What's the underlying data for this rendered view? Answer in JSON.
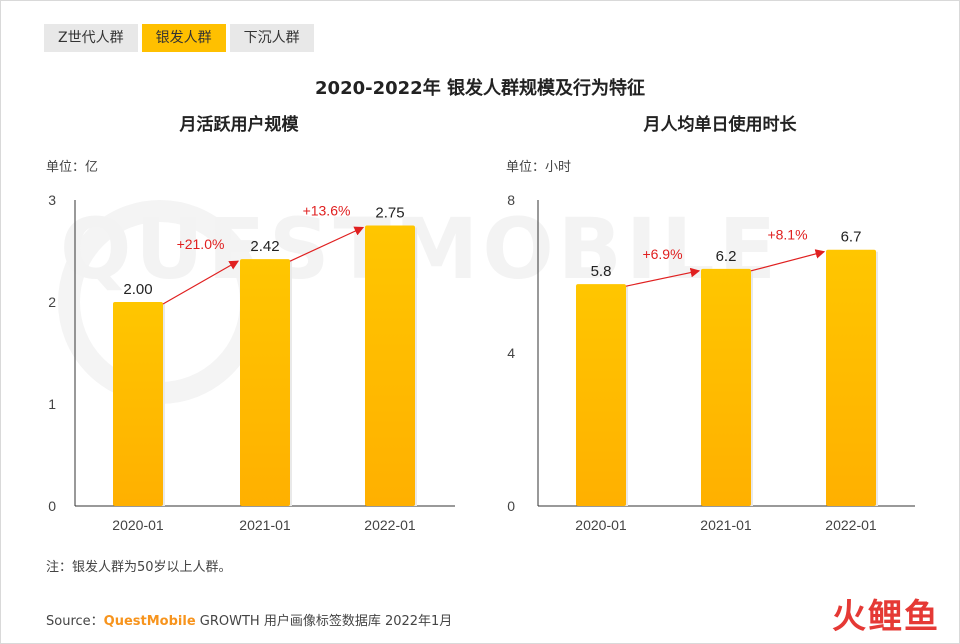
{
  "tabs": [
    {
      "label": "Z世代人群",
      "active": false
    },
    {
      "label": "银发人群",
      "active": true
    },
    {
      "label": "下沉人群",
      "active": false
    }
  ],
  "main_title": "2020-2022年 银发人群规模及行为特征",
  "watermark": "QUESTMOBILE",
  "colors": {
    "bar_top": "#ffc000",
    "bar_bottom": "#ffb400",
    "growth": "#e02020",
    "tab_active": "#ffc000"
  },
  "chart_data": [
    {
      "type": "bar",
      "title": "月活跃用户规模",
      "unit": "单位：亿",
      "categories": [
        "2020-01",
        "2021-01",
        "2022-01"
      ],
      "values": [
        2.0,
        2.42,
        2.75
      ],
      "value_labels": [
        "2.00",
        "2.42",
        "2.75"
      ],
      "growth_labels": [
        "+21.0%",
        "+13.6%"
      ],
      "ylim": [
        0,
        3
      ],
      "yticks": [
        0,
        1,
        2,
        3
      ],
      "grid": false
    },
    {
      "type": "bar",
      "title": "月人均单日使用时长",
      "unit": "单位：小时",
      "categories": [
        "2020-01",
        "2021-01",
        "2022-01"
      ],
      "values": [
        5.8,
        6.2,
        6.7
      ],
      "value_labels": [
        "5.8",
        "6.2",
        "6.7"
      ],
      "growth_labels": [
        "+6.9%",
        "+8.1%"
      ],
      "ylim": [
        0,
        8
      ],
      "yticks": [
        0,
        4,
        8
      ],
      "grid": false
    }
  ],
  "note": "注：银发人群为50岁以上人群。",
  "source": {
    "prefix": "Source：",
    "brand": "QuestMobile",
    "rest": " GROWTH 用户画像标签数据库 2022年1月"
  },
  "logo": "火鲤鱼"
}
